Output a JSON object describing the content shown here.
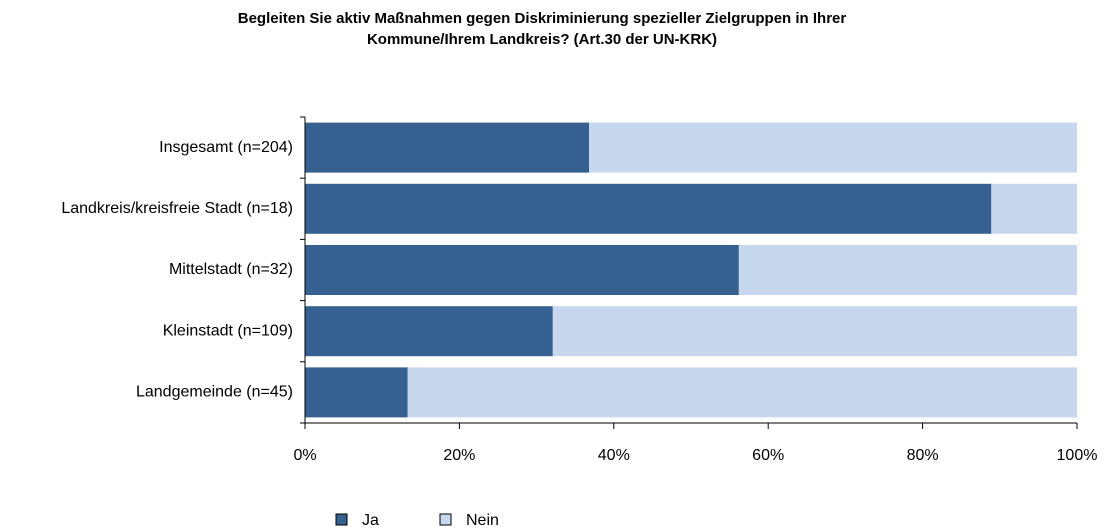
{
  "chart_data": {
    "type": "stacked-barh",
    "title": [
      "Begleiten Sie aktiv Maßnahmen gegen Diskriminierung spezieller Zielgruppen in Ihrer",
      "Kommune/Ihrem Landkreis? (Art.30 der UN-KRK)"
    ],
    "categories": [
      "Insgesamt (n=204)",
      "Landkreis/kreisfreie Stadt (n=18)",
      "Mittelstadt (n=32)",
      "Kleinstadt (n=109)",
      "Landgemeinde (n=45)"
    ],
    "series": [
      {
        "name": "Ja",
        "color": "#36608f",
        "values": [
          36.8,
          88.9,
          56.2,
          32.1,
          13.3
        ]
      },
      {
        "name": "Nein",
        "color": "#c6d7ee",
        "values": [
          63.2,
          11.1,
          43.8,
          67.9,
          86.7
        ]
      }
    ],
    "xlim": [
      0,
      100
    ],
    "xticks": [
      {
        "value": 0,
        "label": "0%"
      },
      {
        "value": 20,
        "label": "20%"
      },
      {
        "value": 40,
        "label": "40%"
      },
      {
        "value": 60,
        "label": "60%"
      },
      {
        "value": 80,
        "label": "80%"
      },
      {
        "value": 100,
        "label": "100%"
      }
    ],
    "legend": "bottom"
  }
}
